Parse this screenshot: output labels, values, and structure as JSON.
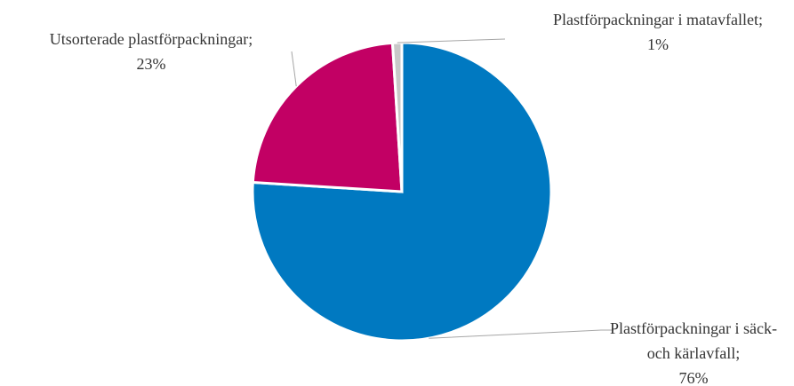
{
  "chart_data": {
    "type": "pie",
    "categories": [
      "Plastförpackningar i säck- och kärlavfall",
      "Utsorterade plastförpackningar",
      "Plastförpackningar i matavfallet"
    ],
    "values": [
      76,
      23,
      1
    ],
    "value_labels": [
      "76%",
      "23%",
      "1%"
    ],
    "label_separator": ";",
    "colors": [
      "#0079c1",
      "#c20064",
      "#c8c8c8"
    ]
  }
}
